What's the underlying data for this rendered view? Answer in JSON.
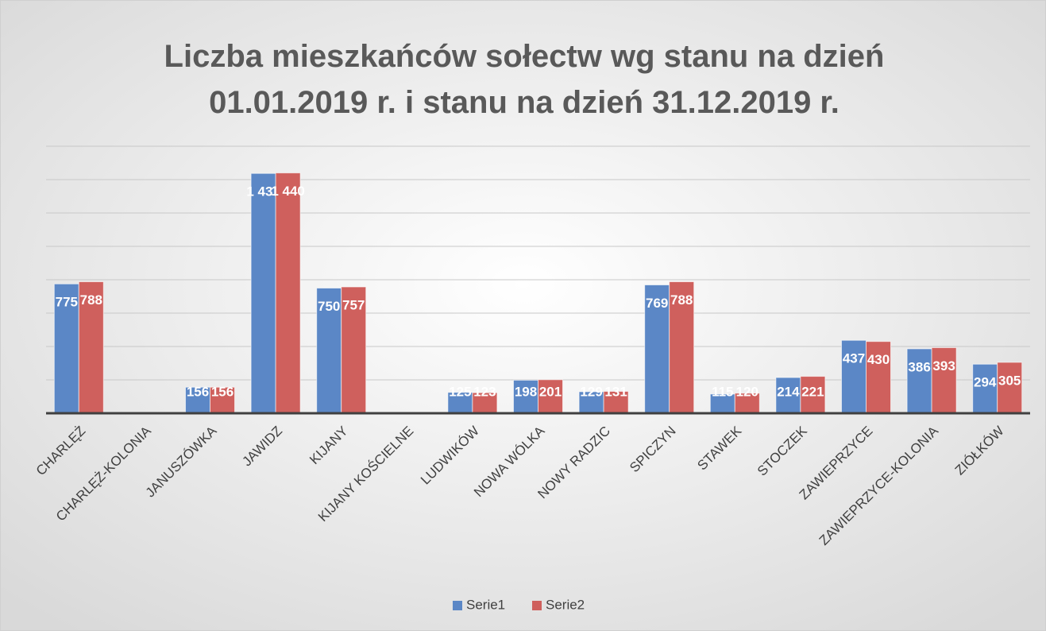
{
  "chart_data": {
    "type": "bar",
    "title": "Liczba mieszkańców sołectw wg stanu na dzień\n01.01.2019 r. i stanu na dzień 31.12.2019 r.",
    "categories": [
      "CHARLĘŻ",
      "CHARLĘŻ-KOLONIA",
      "JANUSZÓWKA",
      "JAWIDZ",
      "KIJANY",
      "KIJANY KOŚCIELNE",
      "LUDWIKÓW",
      "NOWA WÓLKA",
      "NOWY RADZIC",
      "SPICZYN",
      "STAWEK",
      "STOCZEK",
      "ZAWIEPRZYCE",
      "ZAWIEPRZYCE-KOLONIA",
      "ZIÓŁKÓW"
    ],
    "series": [
      {
        "name": "Serie1",
        "color": "#5b87c6",
        "values": [
          775,
          null,
          156,
          1437,
          750,
          null,
          125,
          198,
          129,
          769,
          115,
          214,
          437,
          386,
          294
        ],
        "value_labels": [
          "775",
          null,
          "156",
          "1 437",
          "750",
          null,
          "125",
          "198",
          "129",
          "769",
          "115",
          "214",
          "437",
          "386",
          "294"
        ]
      },
      {
        "name": "Serie2",
        "color": "#cf605d",
        "values": [
          788,
          null,
          156,
          1440,
          757,
          null,
          123,
          201,
          131,
          788,
          120,
          221,
          430,
          393,
          305
        ],
        "value_labels": [
          "788",
          null,
          "156",
          "1 440",
          "757",
          null,
          "123",
          "201",
          "131",
          "788",
          "120",
          "221",
          "430",
          "393",
          "305"
        ]
      }
    ],
    "ylim": [
      0,
      1600
    ],
    "yticks": [
      0,
      200,
      400,
      600,
      800,
      1000,
      1200,
      1400,
      1600
    ],
    "grid": true,
    "legend": "bottom"
  }
}
